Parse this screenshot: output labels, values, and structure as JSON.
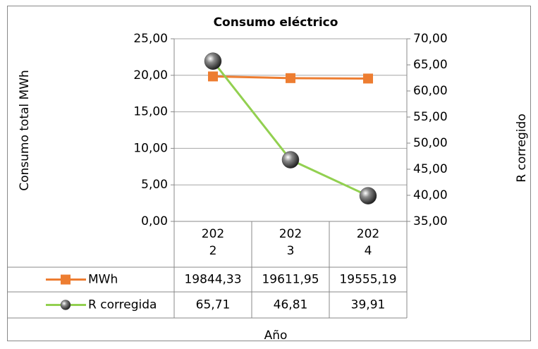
{
  "chart_data": {
    "type": "line",
    "title": "Consumo eléctrico",
    "x_label": "Año",
    "y_label": "Consumo  total MWh",
    "y2_label": "R corregido",
    "categories": [
      "2022",
      "2023",
      "2024"
    ],
    "series": [
      {
        "name": "MWh",
        "color": "#ED7D31",
        "marker": "square",
        "values": [
          19.84433,
          19.61195,
          19.55519
        ],
        "value_labels": [
          "19844,33",
          "19611,95",
          "19555,19"
        ]
      },
      {
        "name": "R corregida",
        "color": "#92D050",
        "marker": "sphere",
        "axis": "y2",
        "values": [
          65.71,
          46.81,
          39.91
        ],
        "value_labels": [
          "65,71",
          "46,81",
          "39,91"
        ]
      }
    ],
    "ylim": [
      0,
      25
    ],
    "yticks": [
      {
        "value": 0,
        "label": "0,00"
      },
      {
        "value": 5,
        "label": "5,00"
      },
      {
        "value": 10,
        "label": "10,00"
      },
      {
        "value": 15,
        "label": "15,00"
      },
      {
        "value": 20,
        "label": "20,00"
      },
      {
        "value": 25,
        "label": "25,00"
      }
    ],
    "y2lim": [
      35,
      70
    ],
    "y2ticks": [
      {
        "value": 35,
        "label": "35,00"
      },
      {
        "value": 40,
        "label": "40,00"
      },
      {
        "value": 45,
        "label": "45,00"
      },
      {
        "value": 50,
        "label": "50,00"
      },
      {
        "value": 55,
        "label": "55,00"
      },
      {
        "value": 60,
        "label": "60,00"
      },
      {
        "value": 65,
        "label": "65,00"
      },
      {
        "value": 70,
        "label": "70,00"
      }
    ],
    "grid": true,
    "data_table": true
  }
}
